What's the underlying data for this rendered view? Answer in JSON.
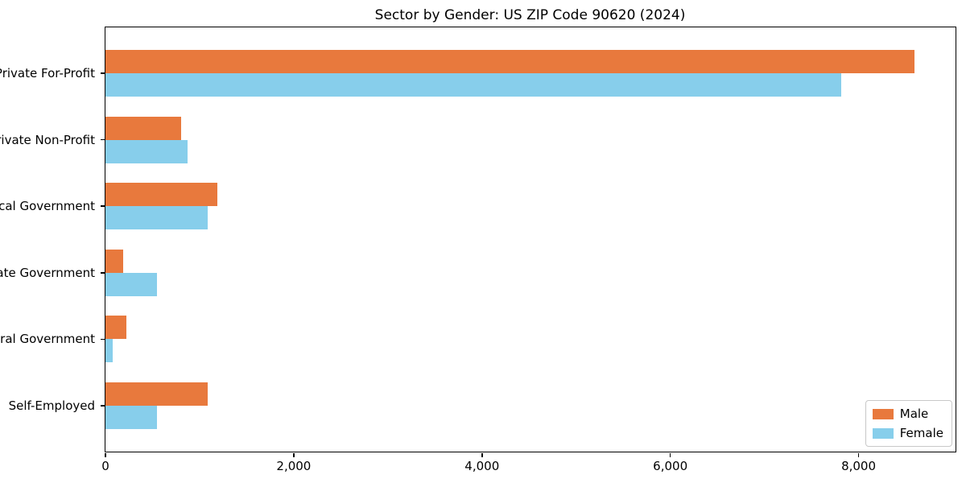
{
  "chart_data": {
    "type": "bar",
    "orientation": "horizontal",
    "title": "Sector by Gender: US ZIP Code 90620 (2024)",
    "categories": [
      "Private For-Profit",
      "Private Non-Profit",
      "Local Government",
      "State Government",
      "Federal Government",
      "Self-Employed"
    ],
    "series": [
      {
        "name": "Male",
        "color": "#E8793D",
        "values": [
          8590,
          800,
          1190,
          185,
          220,
          1085
        ]
      },
      {
        "name": "Female",
        "color": "#87CEEB",
        "values": [
          7820,
          875,
          1090,
          545,
          80,
          550
        ]
      }
    ],
    "xlabel": "",
    "ylabel": "",
    "xlim": [
      0,
      9030
    ],
    "x_ticks": [
      0,
      2000,
      4000,
      6000,
      8000
    ],
    "x_tick_labels": [
      "0",
      "2,000",
      "4,000",
      "6,000",
      "8,000"
    ],
    "grid": false,
    "background": "#ffffff",
    "spine_color": "#000000",
    "legend": {
      "position": "lower right",
      "entries": [
        "Male",
        "Female"
      ]
    }
  }
}
